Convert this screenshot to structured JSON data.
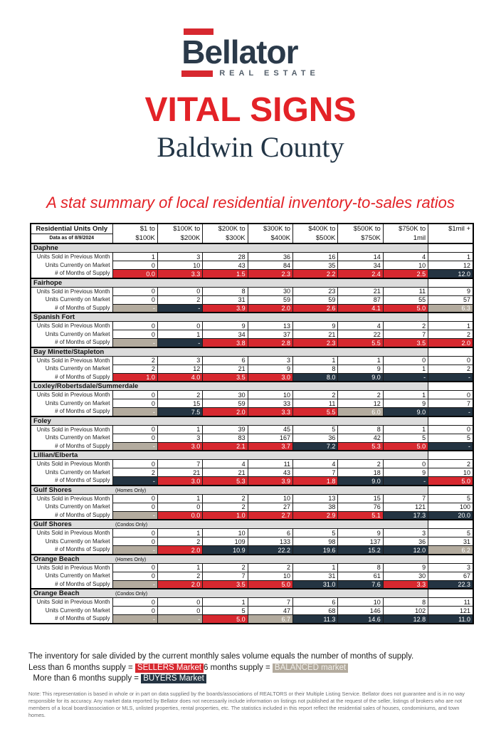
{
  "colors": {
    "accent_red": "#d7282f",
    "title_red": "#e32227",
    "navy": "#243442",
    "tan": "#b3ab9e",
    "band_gray": "#dcdcdc",
    "logo_navy": "#2b3a4a",
    "county_navy": "#223546",
    "note_gray": "#6b6c6e"
  },
  "logo": {
    "brand": "Bellator",
    "tagline": "REAL ESTATE"
  },
  "header": {
    "title": "VITAL SIGNS",
    "subtitle": "Baldwin County",
    "description": "A stat summary of local residential inventory-to-sales ratios"
  },
  "table": {
    "corner_title": "Residential Units Only",
    "corner_subtitle": "Data as of 8/9/2024",
    "columns": [
      {
        "line1": "$1 to",
        "line2": "$100K"
      },
      {
        "line1": "$100K to",
        "line2": "$200K"
      },
      {
        "line1": "$200K to",
        "line2": "$300K"
      },
      {
        "line1": "$300K to",
        "line2": "$400K"
      },
      {
        "line1": "$400K to",
        "line2": "$500K"
      },
      {
        "line1": "$500K to",
        "line2": "$750K"
      },
      {
        "line1": "$750K to",
        "line2": "1mil"
      },
      {
        "line1": "$1mil +",
        "line2": ""
      }
    ],
    "row_labels": [
      "Units Sold in Previous Month",
      "Units Currently on Market",
      "# of Months of Supply"
    ],
    "sections": [
      {
        "name": "Daphne",
        "subtitle": "",
        "sold": [
          1,
          3,
          28,
          36,
          16,
          14,
          4,
          1
        ],
        "market": [
          0,
          10,
          43,
          84,
          35,
          34,
          10,
          12
        ],
        "supply": [
          {
            "v": "0.0",
            "c": "red"
          },
          {
            "v": "3.3",
            "c": "red"
          },
          {
            "v": "1.5",
            "c": "red"
          },
          {
            "v": "2.3",
            "c": "red"
          },
          {
            "v": "2.2",
            "c": "red"
          },
          {
            "v": "2.4",
            "c": "red"
          },
          {
            "v": "2.5",
            "c": "red"
          },
          {
            "v": "12.0",
            "c": "navy"
          }
        ]
      },
      {
        "name": "Fairhope",
        "subtitle": "",
        "sold": [
          0,
          0,
          8,
          30,
          23,
          21,
          11,
          9
        ],
        "market": [
          0,
          2,
          31,
          59,
          59,
          87,
          55,
          57
        ],
        "supply": [
          {
            "v": "-",
            "c": "tan"
          },
          {
            "v": "-",
            "c": "navy"
          },
          {
            "v": "3.9",
            "c": "red"
          },
          {
            "v": "2.0",
            "c": "red"
          },
          {
            "v": "2.6",
            "c": "red"
          },
          {
            "v": "4.1",
            "c": "red"
          },
          {
            "v": "5.0",
            "c": "red"
          },
          {
            "v": "6.3",
            "c": "tan"
          }
        ]
      },
      {
        "name": "Spanish Fort",
        "subtitle": "",
        "sold": [
          0,
          0,
          9,
          13,
          9,
          4,
          2,
          1
        ],
        "market": [
          0,
          1,
          34,
          37,
          21,
          22,
          7,
          2
        ],
        "supply": [
          {
            "v": "-",
            "c": "tan"
          },
          {
            "v": "-",
            "c": "navy"
          },
          {
            "v": "3.8",
            "c": "red"
          },
          {
            "v": "2.8",
            "c": "red"
          },
          {
            "v": "2.3",
            "c": "red"
          },
          {
            "v": "5.5",
            "c": "red"
          },
          {
            "v": "3.5",
            "c": "red"
          },
          {
            "v": "2.0",
            "c": "red"
          }
        ]
      },
      {
        "name": "Bay Minette/Stapleton",
        "subtitle": "",
        "sold": [
          2,
          3,
          6,
          3,
          1,
          1,
          0,
          0
        ],
        "market": [
          2,
          12,
          21,
          9,
          8,
          9,
          1,
          2
        ],
        "supply": [
          {
            "v": "1.0",
            "c": "red"
          },
          {
            "v": "4.0",
            "c": "red"
          },
          {
            "v": "3.5",
            "c": "red"
          },
          {
            "v": "3.0",
            "c": "red"
          },
          {
            "v": "8.0",
            "c": "navy"
          },
          {
            "v": "9.0",
            "c": "navy"
          },
          {
            "v": "-",
            "c": "navy"
          },
          {
            "v": "-",
            "c": "navy"
          }
        ]
      },
      {
        "name": "Loxley/Robertsdale/Summerdale",
        "subtitle": "",
        "sold": [
          0,
          2,
          30,
          10,
          2,
          2,
          1,
          0
        ],
        "market": [
          0,
          15,
          59,
          33,
          11,
          12,
          9,
          7
        ],
        "supply": [
          {
            "v": "-",
            "c": "tan"
          },
          {
            "v": "7.5",
            "c": "navy"
          },
          {
            "v": "2.0",
            "c": "red"
          },
          {
            "v": "3.3",
            "c": "red"
          },
          {
            "v": "5.5",
            "c": "red"
          },
          {
            "v": "6.0",
            "c": "tan"
          },
          {
            "v": "9.0",
            "c": "navy"
          },
          {
            "v": "-",
            "c": "navy"
          }
        ]
      },
      {
        "name": "Foley",
        "subtitle": "",
        "sold": [
          0,
          1,
          39,
          45,
          5,
          8,
          1,
          0
        ],
        "market": [
          0,
          3,
          83,
          167,
          36,
          42,
          5,
          5
        ],
        "supply": [
          {
            "v": "-",
            "c": "tan"
          },
          {
            "v": "3.0",
            "c": "red"
          },
          {
            "v": "2.1",
            "c": "red"
          },
          {
            "v": "3.7",
            "c": "red"
          },
          {
            "v": "7.2",
            "c": "navy"
          },
          {
            "v": "5.3",
            "c": "red"
          },
          {
            "v": "5.0",
            "c": "red"
          },
          {
            "v": "-",
            "c": "navy"
          }
        ]
      },
      {
        "name": "Lillian/Elberta",
        "subtitle": "",
        "sold": [
          0,
          7,
          4,
          11,
          4,
          2,
          0,
          2
        ],
        "market": [
          2,
          21,
          21,
          43,
          7,
          18,
          9,
          10
        ],
        "supply": [
          {
            "v": "-",
            "c": "navy"
          },
          {
            "v": "3.0",
            "c": "red"
          },
          {
            "v": "5.3",
            "c": "red"
          },
          {
            "v": "3.9",
            "c": "red"
          },
          {
            "v": "1.8",
            "c": "red"
          },
          {
            "v": "9.0",
            "c": "navy"
          },
          {
            "v": "-",
            "c": "navy"
          },
          {
            "v": "5.0",
            "c": "red"
          }
        ]
      },
      {
        "name": "Gulf Shores",
        "subtitle": "(Homes Only)",
        "sold": [
          0,
          1,
          2,
          10,
          13,
          15,
          7,
          5
        ],
        "market": [
          0,
          0,
          2,
          27,
          38,
          76,
          121,
          100
        ],
        "supply": [
          {
            "v": "-",
            "c": "tan"
          },
          {
            "v": "0.0",
            "c": "red"
          },
          {
            "v": "1.0",
            "c": "red"
          },
          {
            "v": "2.7",
            "c": "red"
          },
          {
            "v": "2.9",
            "c": "red"
          },
          {
            "v": "5.1",
            "c": "red"
          },
          {
            "v": "17.3",
            "c": "navy"
          },
          {
            "v": "20.0",
            "c": "navy"
          }
        ]
      },
      {
        "name": "Gulf Shores",
        "subtitle": "(Condos Only)",
        "sold": [
          0,
          1,
          10,
          6,
          5,
          9,
          3,
          5
        ],
        "market": [
          0,
          2,
          109,
          133,
          98,
          137,
          36,
          31
        ],
        "supply": [
          {
            "v": "-",
            "c": "tan"
          },
          {
            "v": "2.0",
            "c": "red"
          },
          {
            "v": "10.9",
            "c": "navy"
          },
          {
            "v": "22.2",
            "c": "navy"
          },
          {
            "v": "19.6",
            "c": "navy"
          },
          {
            "v": "15.2",
            "c": "navy"
          },
          {
            "v": "12.0",
            "c": "navy"
          },
          {
            "v": "6.2",
            "c": "tan"
          }
        ]
      },
      {
        "name": "Orange Beach",
        "subtitle": "(Homes Only)",
        "sold": [
          0,
          1,
          2,
          2,
          1,
          8,
          9,
          3
        ],
        "market": [
          0,
          2,
          7,
          10,
          31,
          61,
          30,
          67
        ],
        "supply": [
          {
            "v": "-",
            "c": "tan"
          },
          {
            "v": "2.0",
            "c": "red"
          },
          {
            "v": "3.5",
            "c": "red"
          },
          {
            "v": "5.0",
            "c": "red"
          },
          {
            "v": "31.0",
            "c": "navy"
          },
          {
            "v": "7.6",
            "c": "navy"
          },
          {
            "v": "3.3",
            "c": "red"
          },
          {
            "v": "22.3",
            "c": "navy"
          }
        ]
      },
      {
        "name": "Orange Beach",
        "subtitle": "(Condos Only)",
        "sold": [
          0,
          0,
          1,
          7,
          6,
          10,
          8,
          11
        ],
        "market": [
          0,
          0,
          5,
          47,
          68,
          146,
          102,
          121
        ],
        "supply": [
          {
            "v": "-",
            "c": "tan"
          },
          {
            "v": "-",
            "c": "tan"
          },
          {
            "v": "5.0",
            "c": "red"
          },
          {
            "v": "6.7",
            "c": "tan"
          },
          {
            "v": "11.3",
            "c": "navy"
          },
          {
            "v": "14.6",
            "c": "navy"
          },
          {
            "v": "12.8",
            "c": "navy"
          },
          {
            "v": "11.0",
            "c": "navy"
          }
        ]
      }
    ]
  },
  "legend": {
    "intro": "The inventory for sale divided by the current monthly sales volume equals the number of months of supply.",
    "sellers_prefix": "Less than 6 months supply = ",
    "sellers_label": "SELLERS Market",
    "balanced_prefix": "6 months supply = ",
    "balanced_label": "BALANCED market",
    "buyers_prefix": "  More than 6 months supply = ",
    "buyers_label": "BUYERS Market"
  },
  "note": "Note: This representation is based in whole or in part on data supplied by the boards/associations of REALTORS or their Multiple Listing Service. Bellator does not guarantee and is in no way responsible for its accuracy. Any market data reported by Bellator does not necessarily include information on listings not published at the request of the seller, listings of brokers who are not members of a local board/association or MLS, unlisted properties, rental properties, etc. The statistics included in this report reflect the residential sales of houses, condominiums, and town homes."
}
